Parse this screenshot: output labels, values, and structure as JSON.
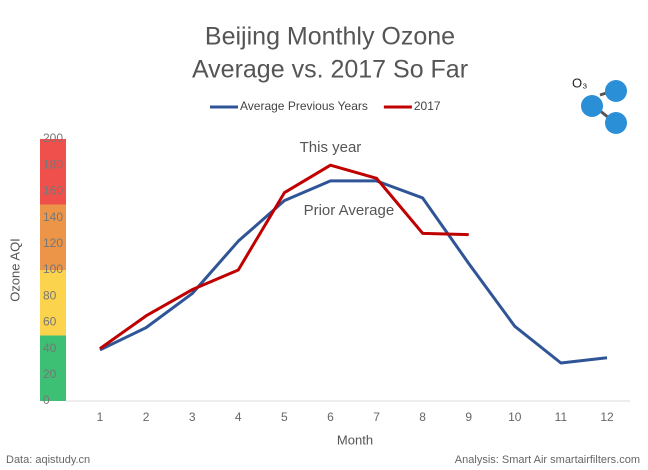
{
  "chart_data": {
    "type": "line",
    "title": [
      "Beijing Monthly Ozone",
      "Average vs. 2017 So Far"
    ],
    "x_label": "Month",
    "y_label": "Ozone AQI",
    "x": [
      1,
      2,
      3,
      4,
      5,
      6,
      7,
      8,
      9,
      10,
      11,
      12
    ],
    "xlim": [
      1,
      12
    ],
    "xticks": [
      1,
      2,
      3,
      4,
      5,
      6,
      7,
      8,
      9,
      10,
      11,
      12
    ],
    "ylim": [
      0,
      200
    ],
    "yticks": [
      0,
      20,
      40,
      60,
      80,
      100,
      120,
      140,
      160,
      180,
      200
    ],
    "grid": false,
    "legend": "top",
    "bands": [
      {
        "from": 0,
        "to": 50,
        "color": "#3dbf74"
      },
      {
        "from": 50,
        "to": 100,
        "color": "#fbd34c"
      },
      {
        "from": 100,
        "to": 150,
        "color": "#ec9447"
      },
      {
        "from": 150,
        "to": 200,
        "color": "#f0504b"
      }
    ],
    "series": [
      {
        "name": "Average Previous Years",
        "color": "#2f5597",
        "values": [
          39,
          56,
          82,
          122,
          153,
          168,
          168,
          155,
          105,
          57,
          29,
          33
        ]
      },
      {
        "name": "2017",
        "color": "#c00000",
        "values": [
          40,
          65,
          85,
          100,
          159,
          180,
          170,
          128,
          127,
          null,
          null,
          null
        ]
      }
    ],
    "annotations": [
      {
        "text": "This year",
        "x": 6,
        "y": 193
      },
      {
        "text": "Prior Average",
        "x": 6.4,
        "y": 145
      }
    ],
    "icon_label": "O₃",
    "source": "Data: aqistudy.cn",
    "credit": "Analysis: Smart Air smartairfilters.com"
  }
}
